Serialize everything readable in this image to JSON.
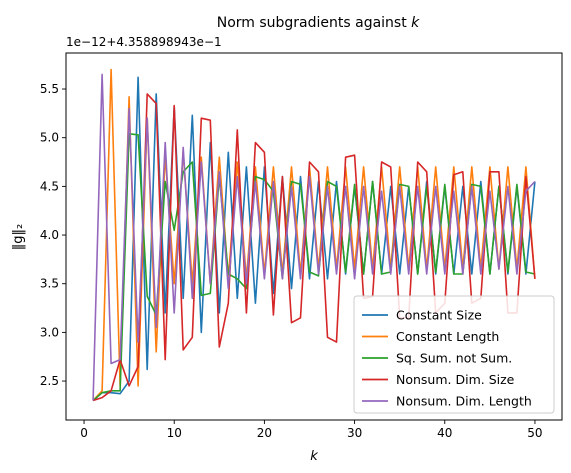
{
  "chart_data": {
    "type": "line",
    "title": "Norm subgradients against k",
    "title_text": "Norm subgradients against ",
    "title_var": "k",
    "xlabel": "k",
    "ylabel": "‖g‖₂",
    "offset_text": "1e−12+4.358898943e−1",
    "xlim": [
      -2,
      53
    ],
    "ylim": [
      2.1,
      5.87
    ],
    "xticks": [
      0,
      10,
      20,
      30,
      40,
      50
    ],
    "yticks": [
      2.5,
      3.0,
      3.5,
      4.0,
      4.5,
      5.0,
      5.5
    ],
    "grid": false,
    "legend_position": "lower-right",
    "x": [
      1,
      2,
      3,
      4,
      5,
      6,
      7,
      8,
      9,
      10,
      11,
      12,
      13,
      14,
      15,
      16,
      17,
      18,
      19,
      20,
      21,
      22,
      23,
      24,
      25,
      26,
      27,
      28,
      29,
      30,
      31,
      32,
      33,
      34,
      35,
      36,
      37,
      38,
      39,
      40,
      41,
      42,
      43,
      44,
      45,
      46,
      47,
      48,
      49,
      50
    ],
    "series": [
      {
        "name": "Constant Size",
        "color": "#1f77b4",
        "values": [
          2.3,
          2.38,
          2.38,
          2.37,
          2.5,
          5.62,
          2.62,
          5.45,
          3.2,
          5.32,
          3.35,
          5.23,
          3.0,
          4.95,
          3.2,
          4.85,
          3.35,
          4.7,
          3.3,
          4.7,
          3.4,
          4.6,
          3.45,
          4.6,
          3.55,
          4.55,
          3.55,
          4.55,
          3.6,
          4.5,
          3.6,
          4.55,
          3.6,
          4.5,
          3.6,
          4.5,
          3.6,
          4.55,
          3.6,
          4.5,
          3.6,
          4.5,
          3.6,
          4.55,
          3.6,
          4.5,
          3.6,
          4.5,
          3.6,
          4.55
        ]
      },
      {
        "name": "Constant Length",
        "color": "#ff7f0e",
        "values": [
          2.3,
          2.4,
          5.7,
          2.45,
          5.42,
          2.45,
          5.2,
          2.8,
          4.82,
          3.5,
          4.85,
          3.5,
          4.8,
          3.5,
          4.8,
          3.55,
          4.75,
          3.55,
          4.7,
          3.6,
          4.7,
          3.6,
          4.7,
          3.6,
          4.7,
          3.65,
          4.7,
          3.65,
          4.7,
          3.65,
          4.7,
          3.65,
          4.7,
          3.65,
          4.7,
          3.65,
          4.7,
          3.65,
          4.7,
          3.65,
          4.7,
          3.65,
          4.7,
          3.65,
          4.7,
          3.65,
          4.7,
          3.65,
          4.7,
          3.55
        ]
      },
      {
        "name": "Sq. Sum. not Sum.",
        "color": "#2ca02c",
        "values": [
          2.3,
          2.38,
          2.4,
          2.4,
          5.04,
          5.03,
          3.37,
          3.18,
          4.55,
          4.05,
          4.65,
          4.75,
          3.38,
          3.4,
          4.6,
          3.6,
          3.55,
          3.45,
          4.6,
          4.57,
          4.45,
          3.55,
          4.55,
          4.52,
          3.62,
          3.58,
          4.55,
          4.5,
          3.62,
          4.52,
          3.6,
          4.55,
          3.6,
          3.62,
          4.52,
          4.5,
          3.6,
          4.5,
          3.62,
          4.52,
          3.6,
          3.6,
          4.52,
          4.5,
          3.6,
          4.5,
          3.62,
          4.52,
          3.62,
          3.6
        ]
      },
      {
        "name": "Nonsum. Dim. Size",
        "color": "#d62728",
        "values": [
          2.3,
          2.33,
          2.4,
          2.72,
          2.45,
          2.65,
          5.45,
          5.35,
          2.72,
          5.33,
          2.82,
          2.95,
          5.2,
          5.18,
          2.85,
          3.3,
          5.08,
          3.2,
          4.95,
          4.85,
          3.18,
          4.6,
          3.1,
          3.15,
          4.75,
          4.65,
          2.95,
          2.9,
          4.8,
          4.82,
          3.35,
          3.37,
          4.75,
          4.7,
          3.15,
          3.15,
          4.75,
          4.65,
          3.2,
          3.3,
          4.62,
          4.65,
          3.3,
          3.35,
          4.65,
          4.65,
          3.2,
          3.2,
          4.6,
          3.55
        ]
      },
      {
        "name": "Nonsum. Dim. Length",
        "color": "#9467bd",
        "values": [
          2.3,
          5.65,
          2.68,
          2.72,
          5.3,
          2.9,
          5.2,
          3.05,
          4.95,
          3.2,
          4.9,
          3.35,
          4.75,
          3.5,
          4.65,
          3.45,
          4.6,
          3.5,
          4.55,
          3.55,
          4.55,
          3.55,
          4.5,
          3.55,
          4.6,
          3.6,
          4.5,
          3.6,
          4.5,
          3.55,
          4.5,
          3.6,
          4.45,
          3.6,
          4.5,
          3.6,
          4.5,
          3.6,
          4.5,
          3.6,
          4.45,
          3.6,
          4.5,
          3.6,
          4.45,
          3.65,
          4.5,
          3.6,
          4.45,
          4.55
        ]
      }
    ]
  }
}
